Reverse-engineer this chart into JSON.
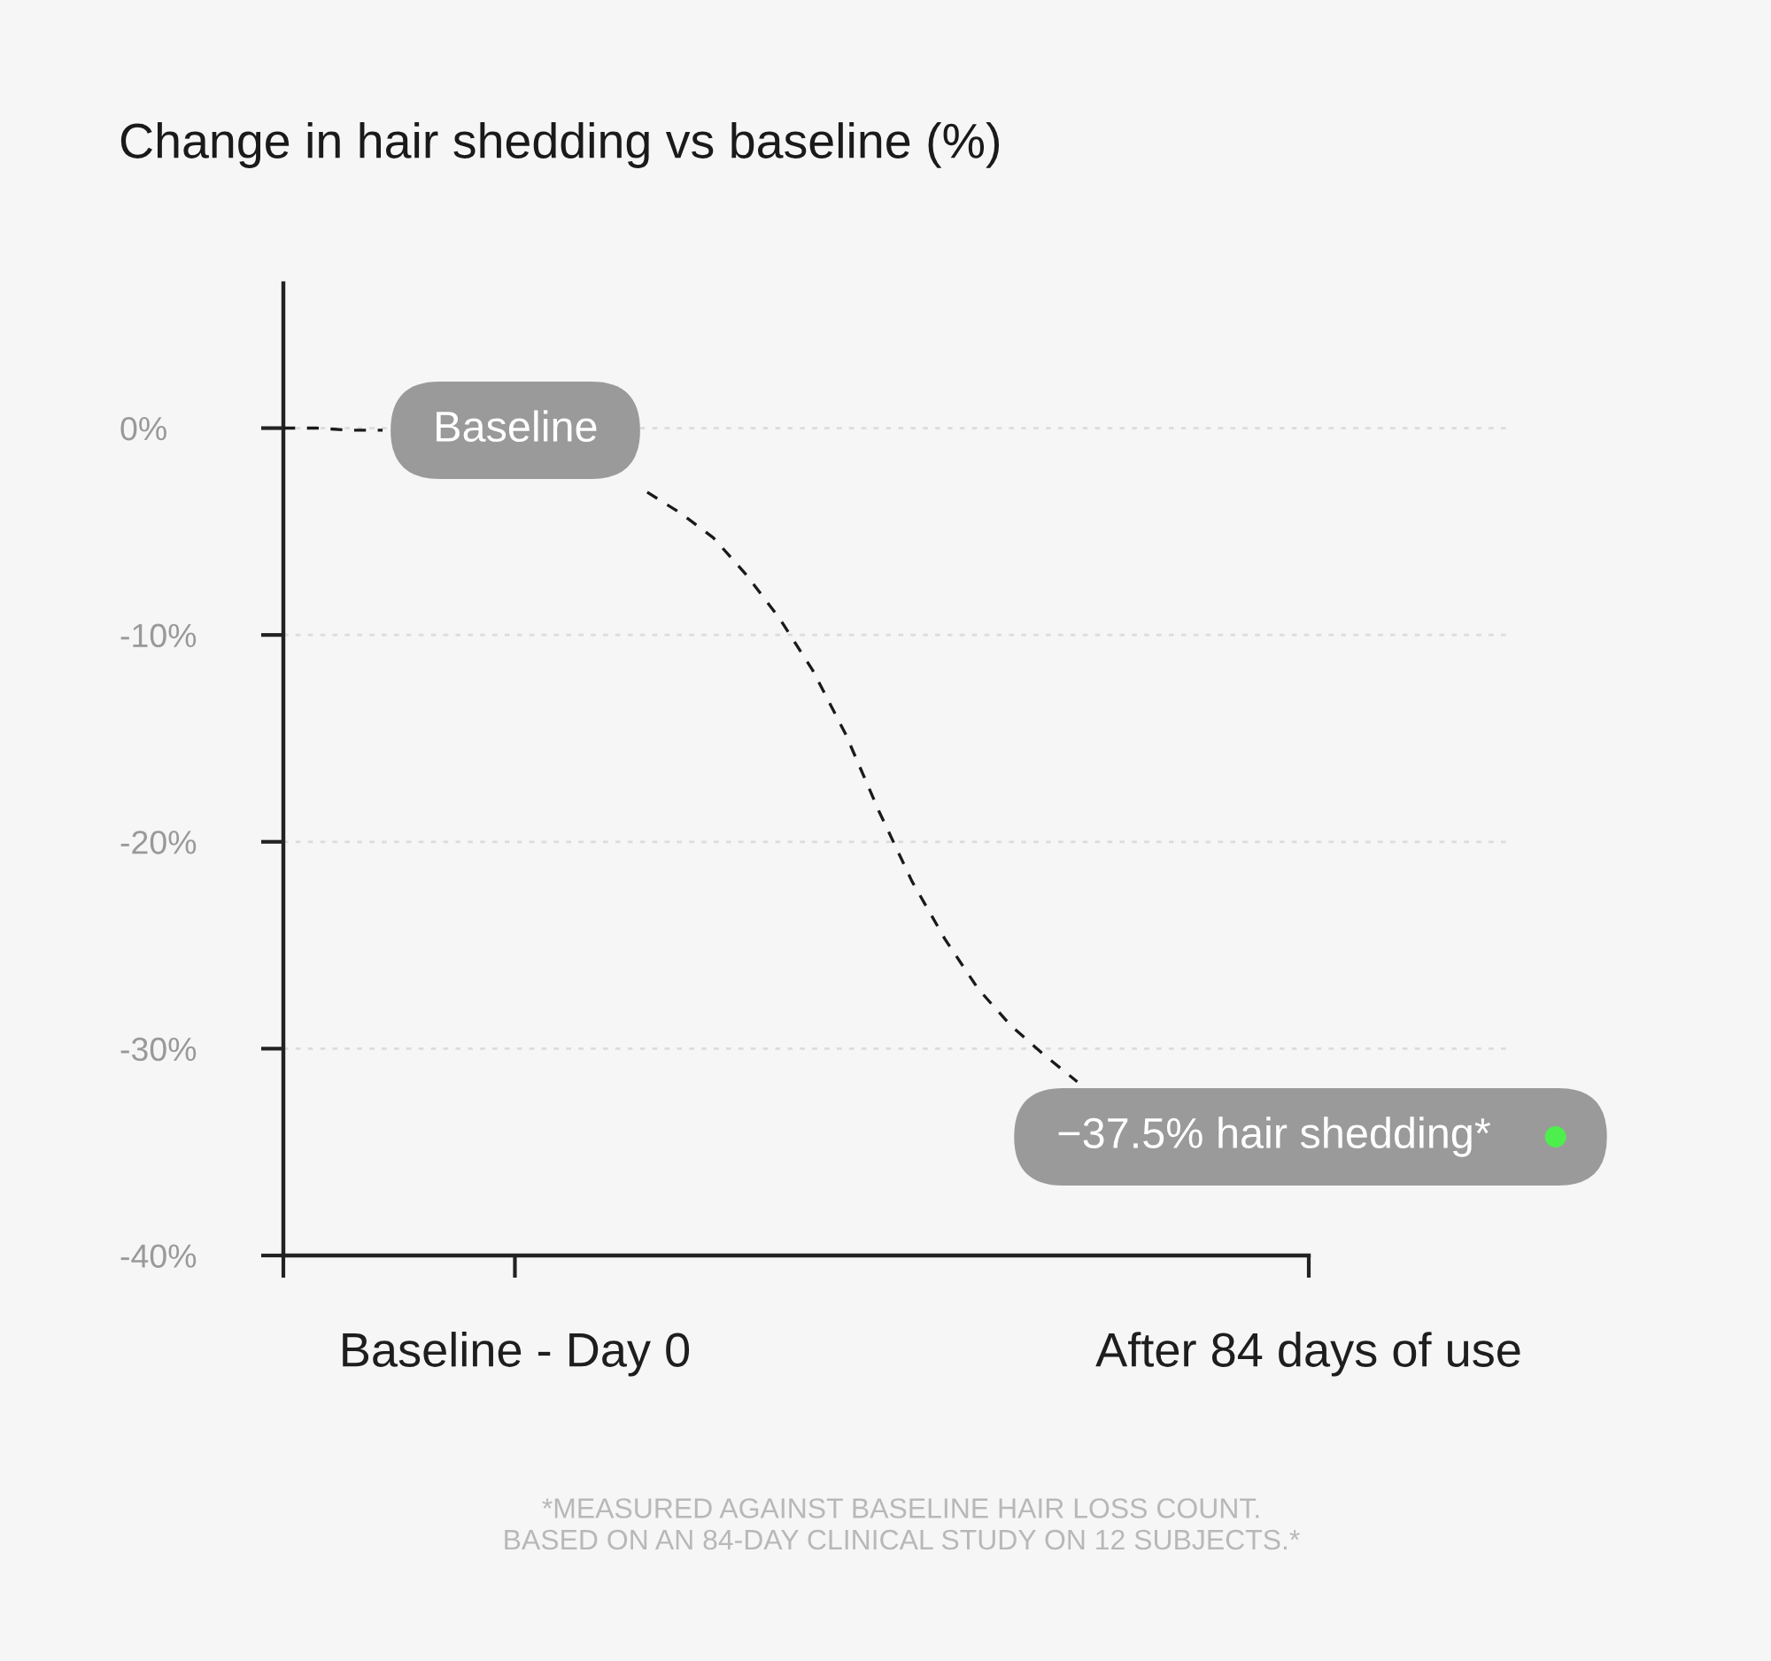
{
  "chart_data": {
    "type": "line",
    "title": "Change in hair shedding vs baseline (%)",
    "categories": [
      null,
      null,
      null,
      null,
      null,
      null,
      null,
      "Baseline - Day 0",
      null,
      null,
      null,
      null,
      null,
      null,
      null,
      null,
      null,
      null,
      null,
      null,
      null,
      null,
      null,
      null,
      null,
      null,
      null,
      null,
      null,
      null,
      null,
      "After 84 days of use"
    ],
    "series": [
      {
        "color": "#1a1a1a",
        "values": [
          0,
          0,
          -0.1,
          -0.1,
          null,
          null,
          null,
          null,
          null,
          null,
          null,
          -3.1,
          -4.1,
          -5.3,
          -7.1,
          -9.2,
          -11.7,
          -14.8,
          -18.5,
          -21.9,
          -24.7,
          -27.1,
          -28.9,
          -30.3,
          -31.6,
          null,
          null,
          null,
          null,
          null,
          null,
          null
        ]
      }
    ],
    "ylim": [
      -40,
      7
    ],
    "yticks": [
      {
        "value": 0,
        "label": "0%"
      },
      {
        "value": -10,
        "label": "-10%"
      },
      {
        "value": -20,
        "label": "-20%"
      },
      {
        "value": -30,
        "label": "-30%"
      },
      {
        "value": -40,
        "label": "-40%"
      }
    ],
    "grid": "y",
    "line_style": "dashed",
    "annotations": [
      "Baseline",
      "−37.5% hair shedding*",
      "*MEASURED AGAINST BASELINE HAIR LOSS COUNT.\nBASED ON AN 84-DAY CLINICAL STUDY ON 12 SUBJECTS.*"
    ]
  }
}
